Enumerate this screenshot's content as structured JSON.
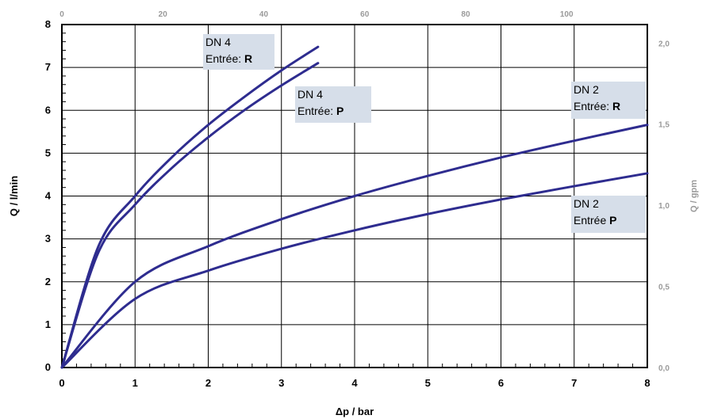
{
  "chart_data": {
    "type": "line",
    "xlabel": "Δp / bar",
    "ylabel": "Q / l/min",
    "y2label": "Q / gpm",
    "xlim": [
      0,
      8
    ],
    "ylim": [
      0,
      8
    ],
    "x_ticks": [
      "0",
      "1",
      "2",
      "3",
      "4",
      "5",
      "6",
      "7",
      "8"
    ],
    "y_ticks": [
      "0",
      "1",
      "2",
      "3",
      "4",
      "5",
      "6",
      "7",
      "8"
    ],
    "x2_ticks": [
      "0",
      "20",
      "40",
      "60",
      "80",
      "100"
    ],
    "x2_values": [
      0,
      20,
      40,
      60,
      80,
      100
    ],
    "x2_per_x": 14.5,
    "y2_ticks": [
      "0,0",
      "0,5",
      "1,0",
      "1,5",
      "2,0"
    ],
    "y2_values": [
      0,
      0.5,
      1.0,
      1.5,
      2.0
    ],
    "y2_per_y": 0.2642,
    "grid": true,
    "series": [
      {
        "key": "dn4r",
        "x": [
          0,
          0.5,
          1,
          1.5,
          2,
          2.5,
          3,
          3.5
        ],
        "values": [
          0,
          2.83,
          4.0,
          4.9,
          5.66,
          6.32,
          6.93,
          7.48
        ],
        "color": "#2e2c8f"
      },
      {
        "key": "dn4p",
        "x": [
          0,
          0.5,
          1,
          1.5,
          2,
          2.5,
          3,
          3.5
        ],
        "values": [
          0,
          2.69,
          3.8,
          4.65,
          5.37,
          6.01,
          6.58,
          7.1
        ],
        "color": "#2e2c8f"
      },
      {
        "key": "dn2r",
        "x": [
          0,
          1,
          2,
          3,
          4,
          5,
          6,
          7,
          8
        ],
        "values": [
          0,
          2.0,
          2.83,
          3.46,
          4.0,
          4.47,
          4.9,
          5.29,
          5.66
        ],
        "color": "#2e2c8f"
      },
      {
        "key": "dn2p",
        "x": [
          0,
          1,
          2,
          3,
          4,
          5,
          6,
          7,
          8
        ],
        "values": [
          0,
          1.6,
          2.26,
          2.77,
          3.2,
          3.58,
          3.92,
          4.23,
          4.53
        ],
        "color": "#2e2c8f"
      }
    ],
    "labels": {
      "dn4r": {
        "line1": "DN 4",
        "line2_prefix": "Entrée: ",
        "line2_bold": "R"
      },
      "dn4p": {
        "line1": "DN 4",
        "line2_prefix": "Entrée: ",
        "line2_bold": "P"
      },
      "dn2r": {
        "line1": "DN 2",
        "line2_prefix": "Entrée: ",
        "line2_bold": "R"
      },
      "dn2p": {
        "line1": "DN 2",
        "line2_prefix": "Entrée ",
        "line2_bold": "P"
      }
    },
    "label_box_color": "#d6dee9",
    "line_color": "#2e2c8f"
  }
}
